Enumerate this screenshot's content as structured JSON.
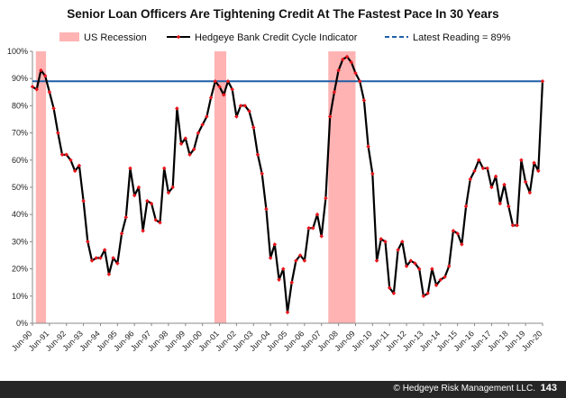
{
  "chart_data": {
    "type": "line",
    "title": "Senior Loan Officers Are Tightening Credit At The Fastest Pace In 30 Years",
    "ylim": [
      0,
      100
    ],
    "y_tick_labels": [
      "0%",
      "10%",
      "20%",
      "30%",
      "40%",
      "50%",
      "60%",
      "70%",
      "80%",
      "90%",
      "100%"
    ],
    "x_tick_labels": [
      "Jun-90",
      "Jun-91",
      "Jun-92",
      "Jun-93",
      "Jun-94",
      "Jun-95",
      "Jun-96",
      "Jun-97",
      "Jun-98",
      "Jun-99",
      "Jun-00",
      "Jun-01",
      "Jun-02",
      "Jun-03",
      "Jun-04",
      "Jun-05",
      "Jun-06",
      "Jun-07",
      "Jun-08",
      "Jun-09",
      "Jun-10",
      "Jun-11",
      "Jun-12",
      "Jun-13",
      "Jun-14",
      "Jun-15",
      "Jun-16",
      "Jun-17",
      "Jun-18",
      "Jun-19",
      "Jun-20"
    ],
    "x_range": [
      1990.5,
      2020.5
    ],
    "legend": [
      {
        "label": "US Recession",
        "kind": "recession"
      },
      {
        "label": "Hedgeye Bank Credit Cycle Indicator",
        "kind": "series"
      },
      {
        "label": "Latest Reading = 89%",
        "kind": "reference"
      }
    ],
    "recessions": [
      [
        1990.7,
        1991.3
      ],
      [
        2001.2,
        2001.9
      ],
      [
        2007.9,
        2009.5
      ]
    ],
    "reference_value": 89,
    "series": [
      {
        "name": "Hedgeye Bank Credit Cycle Indicator",
        "x": [
          1990.5,
          1990.75,
          1991.0,
          1991.25,
          1991.5,
          1991.75,
          1992.0,
          1992.25,
          1992.5,
          1992.75,
          1993.0,
          1993.25,
          1993.5,
          1993.75,
          1994.0,
          1994.25,
          1994.5,
          1994.75,
          1995.0,
          1995.25,
          1995.5,
          1995.75,
          1996.0,
          1996.25,
          1996.5,
          1996.75,
          1997.0,
          1997.25,
          1997.5,
          1997.75,
          1998.0,
          1998.25,
          1998.5,
          1998.75,
          1999.0,
          1999.25,
          1999.5,
          1999.75,
          2000.0,
          2000.25,
          2000.5,
          2000.75,
          2001.0,
          2001.25,
          2001.5,
          2001.75,
          2002.0,
          2002.25,
          2002.5,
          2002.75,
          2003.0,
          2003.25,
          2003.5,
          2003.75,
          2004.0,
          2004.25,
          2004.5,
          2004.75,
          2005.0,
          2005.25,
          2005.5,
          2005.75,
          2006.0,
          2006.25,
          2006.5,
          2006.75,
          2007.0,
          2007.25,
          2007.5,
          2007.75,
          2008.0,
          2008.25,
          2008.5,
          2008.75,
          2009.0,
          2009.25,
          2009.5,
          2009.75,
          2010.0,
          2010.25,
          2010.5,
          2010.75,
          2011.0,
          2011.25,
          2011.5,
          2011.75,
          2012.0,
          2012.25,
          2012.5,
          2012.75,
          2013.0,
          2013.25,
          2013.5,
          2013.75,
          2014.0,
          2014.25,
          2014.5,
          2014.75,
          2015.0,
          2015.25,
          2015.5,
          2015.75,
          2016.0,
          2016.25,
          2016.5,
          2016.75,
          2017.0,
          2017.25,
          2017.5,
          2017.75,
          2018.0,
          2018.25,
          2018.5,
          2018.75,
          2019.0,
          2019.25,
          2019.5,
          2019.75,
          2020.0,
          2020.25,
          2020.5
        ],
        "values": [
          87,
          86,
          93,
          91,
          85,
          79,
          70,
          62,
          62,
          60,
          56,
          58,
          45,
          30,
          23,
          24,
          24,
          27,
          18,
          24,
          22,
          33,
          39,
          57,
          47,
          50,
          34,
          45,
          44,
          38,
          37,
          57,
          48,
          50,
          79,
          66,
          68,
          62,
          64,
          70,
          73,
          76,
          83,
          89,
          87,
          84,
          89,
          86,
          76,
          80,
          80,
          78,
          72,
          62,
          55,
          42,
          24,
          29,
          16,
          20,
          4,
          15,
          23,
          25,
          23,
          35,
          35,
          40,
          32,
          46,
          76,
          85,
          93,
          97,
          98,
          96,
          92,
          89,
          82,
          65,
          55,
          23,
          31,
          30,
          13,
          11,
          27,
          30,
          21,
          23,
          22,
          20,
          10,
          11,
          20,
          14,
          16,
          17,
          21,
          34,
          33,
          29,
          43,
          53,
          56,
          60,
          57,
          57,
          50,
          54,
          44,
          51,
          43,
          36,
          36,
          60,
          52,
          48,
          59,
          56,
          89
        ]
      }
    ]
  },
  "footer": {
    "copyright": "© Hedgeye Risk Management LLC.",
    "page_number": "143"
  }
}
